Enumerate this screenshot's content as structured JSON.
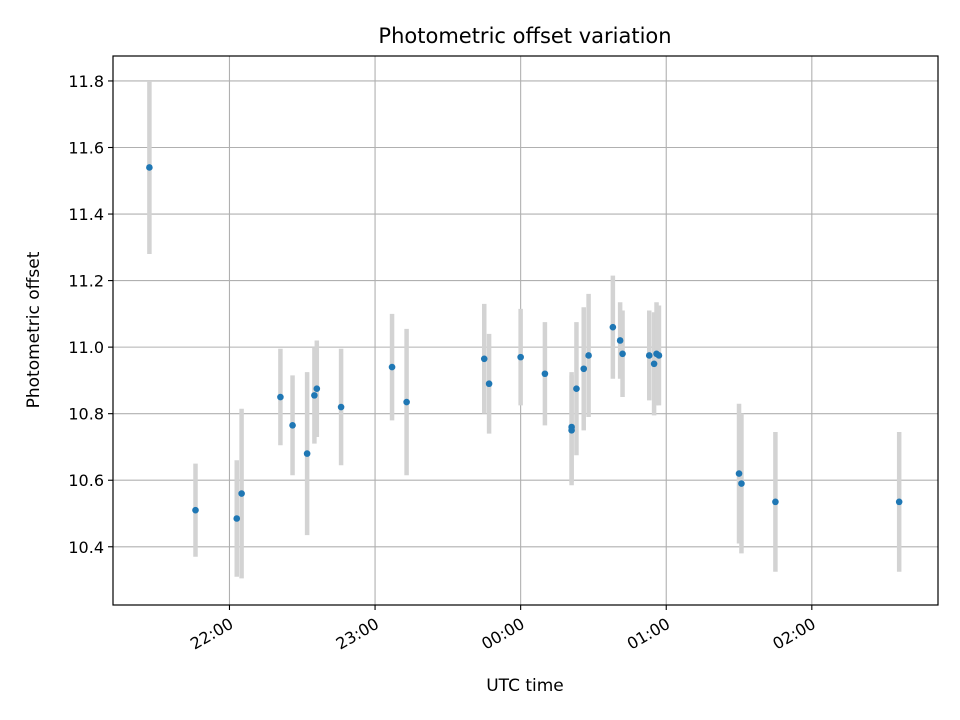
{
  "chart_data": {
    "type": "scatter",
    "title": "Photometric offset variation",
    "xlabel": "UTC time",
    "ylabel": "Photometric offset",
    "x_unit": "UTC hh:mm",
    "xlim": [
      "21:12",
      "02:52"
    ],
    "ylim": [
      10.225,
      11.875
    ],
    "x_ticks": [
      "22:00",
      "23:00",
      "00:00",
      "01:00",
      "02:00"
    ],
    "y_ticks": [
      10.4,
      10.6,
      10.8,
      11.0,
      11.2,
      11.4,
      11.6,
      11.8
    ],
    "y_tick_labels": [
      "10.4",
      "10.6",
      "10.8",
      "11.0",
      "11.2",
      "11.4",
      "11.6",
      "11.8"
    ],
    "grid": true,
    "point_color": "#1f77b4",
    "errorbar_color": "#d3d3d3",
    "series": [
      {
        "points": [
          {
            "x": "21:27",
            "y": 11.54,
            "yerr": 0.26
          },
          {
            "x": "21:46",
            "y": 10.51,
            "yerr": 0.14
          },
          {
            "x": "22:03",
            "y": 10.485,
            "yerr": 0.175
          },
          {
            "x": "22:05",
            "y": 10.56,
            "yerr": 0.255
          },
          {
            "x": "22:21",
            "y": 10.85,
            "yerr": 0.145
          },
          {
            "x": "22:26",
            "y": 10.765,
            "yerr": 0.15
          },
          {
            "x": "22:32",
            "y": 10.68,
            "yerr": 0.245
          },
          {
            "x": "22:35",
            "y": 10.855,
            "yerr": 0.145
          },
          {
            "x": "22:36",
            "y": 10.875,
            "yerr": 0.145
          },
          {
            "x": "22:46",
            "y": 10.82,
            "yerr": 0.175
          },
          {
            "x": "23:07",
            "y": 10.94,
            "yerr": 0.16
          },
          {
            "x": "23:13",
            "y": 10.835,
            "yerr": 0.22
          },
          {
            "x": "23:45",
            "y": 10.965,
            "yerr": 0.165
          },
          {
            "x": "23:47",
            "y": 10.89,
            "yerr": 0.15
          },
          {
            "x": "00:00",
            "y": 10.97,
            "yerr": 0.145
          },
          {
            "x": "00:10",
            "y": 10.92,
            "yerr": 0.155
          },
          {
            "x": "00:21",
            "y": 10.76,
            "yerr": 0.165
          },
          {
            "x": "00:21",
            "y": 10.75,
            "yerr": 0.165
          },
          {
            "x": "00:23",
            "y": 10.875,
            "yerr": 0.2
          },
          {
            "x": "00:26",
            "y": 10.935,
            "yerr": 0.185
          },
          {
            "x": "00:28",
            "y": 10.975,
            "yerr": 0.185
          },
          {
            "x": "00:38",
            "y": 11.06,
            "yerr": 0.155
          },
          {
            "x": "00:41",
            "y": 11.02,
            "yerr": 0.115
          },
          {
            "x": "00:42",
            "y": 10.98,
            "yerr": 0.13
          },
          {
            "x": "00:53",
            "y": 10.975,
            "yerr": 0.135
          },
          {
            "x": "00:55",
            "y": 10.95,
            "yerr": 0.155
          },
          {
            "x": "00:56",
            "y": 10.98,
            "yerr": 0.155
          },
          {
            "x": "00:57",
            "y": 10.975,
            "yerr": 0.15
          },
          {
            "x": "01:30",
            "y": 10.62,
            "yerr": 0.21
          },
          {
            "x": "01:31",
            "y": 10.59,
            "yerr": 0.21
          },
          {
            "x": "01:45",
            "y": 10.535,
            "yerr": 0.21
          },
          {
            "x": "02:36",
            "y": 10.535,
            "yerr": 0.21
          }
        ]
      }
    ]
  }
}
